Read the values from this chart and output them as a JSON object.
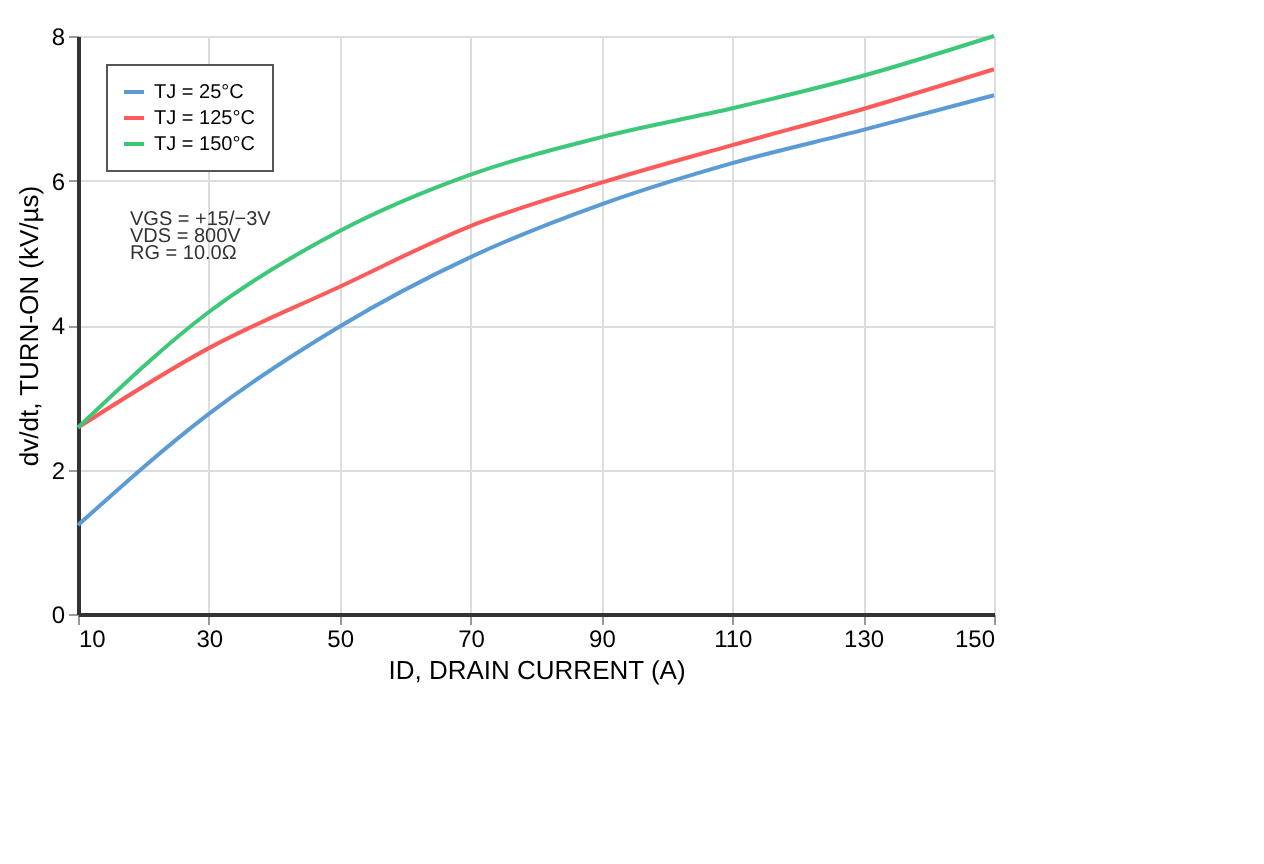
{
  "chart_data": {
    "type": "line",
    "xlabel": "ID, DRAIN CURRENT (A)",
    "ylabel": "dv/dt, TURN-ON (kV/µs)",
    "x": [
      10,
      30,
      50,
      70,
      90,
      110,
      130,
      150
    ],
    "series": [
      {
        "name": "TJ = 25°C",
        "color": "#5b9bd5",
        "values": [
          1.23,
          2.77,
          3.98,
          4.94,
          5.67,
          6.24,
          6.7,
          7.18
        ]
      },
      {
        "name": "TJ = 125°C",
        "color": "#ff5a5a",
        "values": [
          2.58,
          3.68,
          4.53,
          5.37,
          5.97,
          6.49,
          6.99,
          7.54
        ]
      },
      {
        "name": "TJ = 150°C",
        "color": "#3cc878",
        "values": [
          2.58,
          4.18,
          5.3,
          6.08,
          6.6,
          7.0,
          7.45,
          8.0
        ]
      }
    ],
    "xlim": [
      10,
      150
    ],
    "xticks": [
      10,
      30,
      50,
      70,
      90,
      110,
      130,
      150
    ],
    "ylim": [
      0,
      8
    ],
    "yticks": [
      0,
      2,
      4,
      6,
      8
    ],
    "grid": true,
    "legend": "top left",
    "marker": "none",
    "line_style": "solid",
    "annotations": [
      "VGS = +15/−3V",
      "VDS = 800V",
      "RG = 10.0Ω"
    ]
  }
}
